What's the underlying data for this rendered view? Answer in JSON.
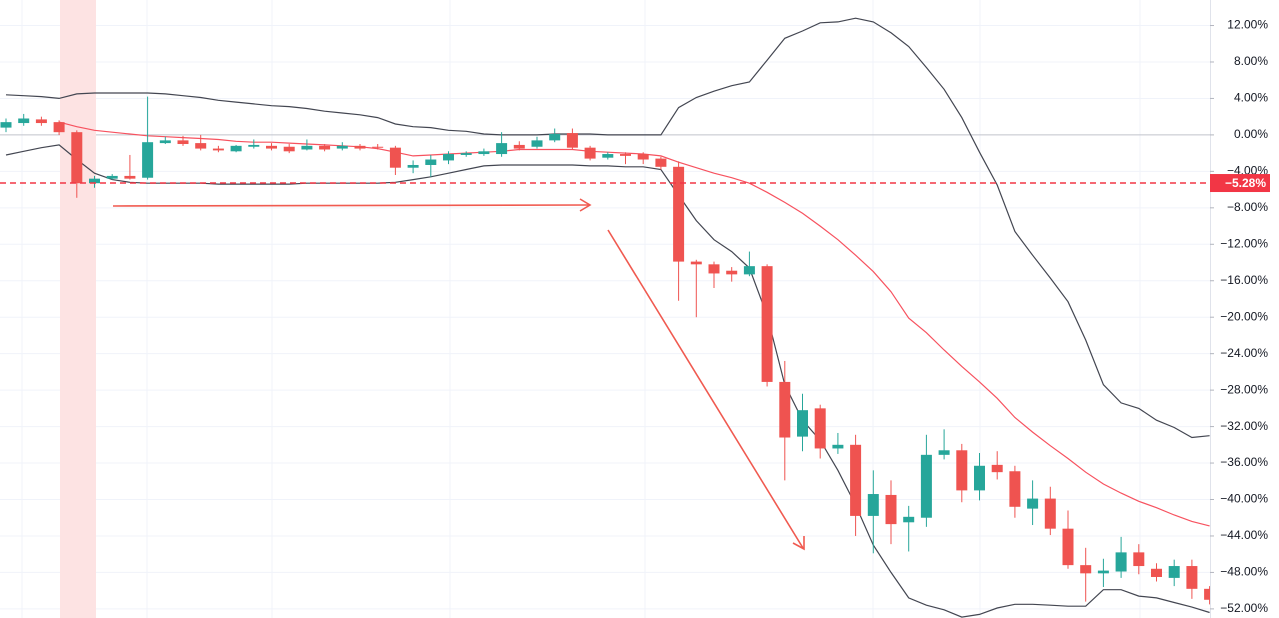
{
  "chart_data": {
    "type": "candlestick",
    "open": [
      0.8,
      1.3,
      1.7,
      1.4,
      0.3,
      -5.3,
      -4.8,
      -4.5,
      -4.7,
      -0.9,
      -0.6,
      -0.9,
      -1.5,
      -1.8,
      -1.3,
      -1.2,
      -1.3,
      -1.6,
      -1.2,
      -1.5,
      -1.2,
      -1.3,
      -1.4,
      -3.6,
      -3.3,
      -2.8,
      -2.2,
      -2.1,
      -2.1,
      -1.1,
      -1.3,
      -0.6,
      0.2,
      -1.4,
      -2.5,
      -2.1,
      -2.1,
      -2.6,
      -3.5,
      -13.9,
      -14.2,
      -14.9,
      -15.3,
      -14.4,
      -27.1,
      -33.1,
      -30.0,
      -34.4,
      -34.0,
      -41.8,
      -39.5,
      -42.5,
      -42.0,
      -35.1,
      -34.6,
      -39.0,
      -36.2,
      -36.9,
      -41.0,
      -39.9,
      -43.2,
      -47.2,
      -48.1,
      -47.9,
      -45.8,
      -47.6,
      -48.6,
      -47.3,
      -49.8
    ],
    "high": [
      1.8,
      2.3,
      2.0,
      1.6,
      0.5,
      -4.5,
      -4.3,
      -2.2,
      4.2,
      -0.2,
      -0.1,
      0,
      -1.2,
      -1.1,
      -0.5,
      -0.9,
      -1.0,
      -0.5,
      -1.0,
      -0.8,
      -1.0,
      -1.0,
      -1.2,
      -2.8,
      -2.2,
      -1.8,
      -1.8,
      -1.5,
      0.3,
      -0.7,
      -0.2,
      0.7,
      0.7,
      -1.2,
      -1.9,
      -1.9,
      -1.9,
      -2.4,
      -2.9,
      -13.7,
      -13.9,
      -14.5,
      -12.8,
      -14.2,
      -24.8,
      -28.4,
      -29.6,
      -32.7,
      -32.9,
      -36.8,
      -37.9,
      -40.7,
      -32.9,
      -32.3,
      -33.9,
      -34.9,
      -34.7,
      -36.3,
      -37.9,
      -38.6,
      -41.2,
      -45.3,
      -46.5,
      -44.1,
      -44.9,
      -47.0,
      -46.6,
      -46.6,
      -49.5
    ],
    "low": [
      0.3,
      1.0,
      1.0,
      0.0,
      -6.9,
      -5.8,
      -4.9,
      -4.9,
      -4.9,
      -1.0,
      -1.2,
      -1.7,
      -1.9,
      -1.9,
      -1.5,
      -1.7,
      -2.0,
      -1.7,
      -1.8,
      -1.7,
      -1.7,
      -1.6,
      -4.4,
      -4.2,
      -4.6,
      -3.2,
      -2.4,
      -2.3,
      -2.4,
      -1.7,
      -1.5,
      -0.8,
      -1.6,
      -2.8,
      -2.7,
      -3.2,
      -3.2,
      -3.8,
      -18.2,
      -20.0,
      -16.8,
      -16.1,
      -15.5,
      -27.6,
      -37.9,
      -34.7,
      -35.5,
      -35.0,
      -44.0,
      -45.9,
      -44.9,
      -45.7,
      -43.0,
      -35.6,
      -40.3,
      -40.1,
      -37.8,
      -42.0,
      -42.8,
      -43.9,
      -47.6,
      -51.2,
      -49.6,
      -48.6,
      -48.2,
      -49.0,
      -49.5,
      -50.9,
      -51.5
    ],
    "close": [
      1.4,
      1.8,
      1.3,
      0.3,
      -5.3,
      -4.8,
      -4.5,
      -4.8,
      -0.8,
      -0.6,
      -1.0,
      -1.5,
      -1.7,
      -1.2,
      -1.1,
      -1.5,
      -1.8,
      -1.2,
      -1.6,
      -1.2,
      -1.5,
      -1.4,
      -3.6,
      -3.3,
      -2.7,
      -2.1,
      -2.0,
      -1.8,
      -0.9,
      -1.5,
      -0.6,
      0.1,
      -1.4,
      -2.6,
      -2.1,
      -2.3,
      -2.7,
      -3.5,
      -13.9,
      -14.2,
      -15.2,
      -15.3,
      -14.4,
      -27.1,
      -33.2,
      -30.2,
      -34.4,
      -34.0,
      -41.8,
      -39.4,
      -42.7,
      -41.9,
      -35.1,
      -34.6,
      -39.0,
      -36.3,
      -37.0,
      -40.8,
      -39.9,
      -43.2,
      -47.2,
      -48.1,
      -47.8,
      -45.8,
      -47.3,
      -48.5,
      -47.3,
      -49.8,
      -51.0
    ],
    "up_color": "#26a69a",
    "down_color": "#ef5350",
    "lines": [
      {
        "color": "#434651",
        "values": [
          4.4,
          4.3,
          4.2,
          4.0,
          4.5,
          4.6,
          4.6,
          4.6,
          4.6,
          4.5,
          4.3,
          4.1,
          3.8,
          3.6,
          3.4,
          3.2,
          3.1,
          2.9,
          2.6,
          2.4,
          2.2,
          1.9,
          1.2,
          0.9,
          0.8,
          0.5,
          0.4,
          0.1,
          0.0,
          0.0,
          0.0,
          0.1,
          0.1,
          0.1,
          0.0,
          0.0,
          0.0,
          0.0,
          3.0,
          4.1,
          4.8,
          5.4,
          5.8,
          8.2,
          10.6,
          11.4,
          12.3,
          12.4,
          12.8,
          12.4,
          11.2,
          9.7,
          7.4,
          5.0,
          1.9,
          -1.9,
          -5.5,
          -10.6,
          -13.2,
          -15.7,
          -18.3,
          -22.5,
          -27.4,
          -29.4,
          -30.0,
          -31.3,
          -32.1,
          -33.2,
          -33.0
        ]
      },
      {
        "color": "#f7525f",
        "values": [
          null,
          null,
          null,
          1.4,
          0.9,
          0.5,
          0.3,
          0.1,
          -0.1,
          -0.2,
          -0.3,
          -0.4,
          -0.5,
          -0.7,
          -0.8,
          -0.8,
          -0.9,
          -1.0,
          -1.1,
          -1.2,
          -1.3,
          -1.5,
          -1.9,
          -2.3,
          -2.2,
          -2.1,
          -2.0,
          -1.9,
          -1.8,
          -1.6,
          -1.6,
          -1.6,
          -1.6,
          -1.8,
          -1.9,
          -2.0,
          -2.1,
          -2.3,
          -3.0,
          -3.6,
          -4.2,
          -4.7,
          -5.3,
          -6.3,
          -7.4,
          -8.6,
          -10.0,
          -11.5,
          -13.2,
          -15.0,
          -17.2,
          -20.1,
          -21.7,
          -23.6,
          -25.4,
          -27.1,
          -28.9,
          -31.0,
          -32.6,
          -34.1,
          -35.5,
          -37.0,
          -38.3,
          -39.3,
          -40.2,
          -40.9,
          -41.7,
          -42.4,
          -42.9
        ]
      },
      {
        "color": "#434651",
        "values": [
          -2.2,
          -1.8,
          -1.4,
          -1.1,
          -2.7,
          -4.2,
          -4.9,
          -5.2,
          -5.3,
          -5.3,
          -5.3,
          -5.3,
          -5.4,
          -5.4,
          -5.4,
          -5.4,
          -5.4,
          -5.3,
          -5.3,
          -5.3,
          -5.3,
          -5.3,
          -5.2,
          -4.9,
          -4.6,
          -4.2,
          -3.8,
          -3.4,
          -3.3,
          -3.3,
          -3.3,
          -3.3,
          -3.3,
          -3.4,
          -3.4,
          -3.5,
          -3.5,
          -3.8,
          -6.6,
          -9.4,
          -11.5,
          -12.8,
          -14.6,
          -19.8,
          -27.4,
          -31.3,
          -33.5,
          -36.8,
          -40.6,
          -45.0,
          -48.0,
          -50.8,
          -51.6,
          -52.1,
          -52.9,
          -52.6,
          -51.9,
          -51.5,
          -51.5,
          -51.6,
          -51.7,
          -51.7,
          -49.9,
          -49.9,
          -50.6,
          -50.8,
          -51.3,
          -51.8,
          -52.4
        ]
      }
    ],
    "price_line": {
      "value": -5.28,
      "label": "−5.28%",
      "color": "#f23645"
    },
    "ylim": [
      -53.0,
      14.8
    ],
    "yticks": [
      {
        "value": 12,
        "label": "12.00%"
      },
      {
        "value": 8,
        "label": "8.00%"
      },
      {
        "value": 4,
        "label": "4.00%"
      },
      {
        "value": 0,
        "label": "0.00%"
      },
      {
        "value": -4,
        "label": "−4.00%"
      },
      {
        "value": -8,
        "label": "−8.00%"
      },
      {
        "value": -12,
        "label": "−12.00%"
      },
      {
        "value": -16,
        "label": "−16.00%"
      },
      {
        "value": -20,
        "label": "−20.00%"
      },
      {
        "value": -24,
        "label": "−24.00%"
      },
      {
        "value": -28,
        "label": "−28.00%"
      },
      {
        "value": -32,
        "label": "−32.00%"
      },
      {
        "value": -36,
        "label": "−36.00%"
      },
      {
        "value": -40,
        "label": "−40.00%"
      },
      {
        "value": -44,
        "label": "−44.00%"
      },
      {
        "value": -48,
        "label": "−48.00%"
      },
      {
        "value": -52,
        "label": "−52.00%"
      }
    ],
    "grid": true
  }
}
